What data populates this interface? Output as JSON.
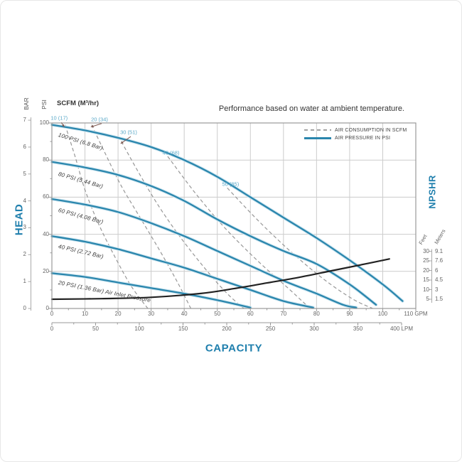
{
  "colors": {
    "curve_blue": "#2a86ad",
    "curve_blue_halo": "#cfe6f0",
    "label_blue": "#1f7fad",
    "scfm_label_blue": "#5aa8c8",
    "dashed_gray": "#979797",
    "npshr_black": "#222222",
    "grid": "#cccccc",
    "frame": "#999999",
    "tick_text": "#666666",
    "arrow": "#7f5a52"
  },
  "chart_data": {
    "type": "line",
    "title": "Performance based on water at ambient temperature.",
    "scfm_header": "SCFM (M³/hr)",
    "legend": [
      {
        "label": "AIR CONSUMPTION IN SCFM",
        "style": "dashed"
      },
      {
        "label": "AIR PRESSURE IN PSI",
        "style": "solid"
      }
    ],
    "x_axis": {
      "label": "CAPACITY",
      "gpm": {
        "min": 0,
        "max": 110,
        "tick_step": 10,
        "unit": "GPM"
      },
      "lpm": {
        "min": 0,
        "max": 400,
        "tick_step": 50,
        "unit": "LPM"
      }
    },
    "y_axis_left": {
      "label": "HEAD",
      "psi": {
        "min": 0,
        "max": 100,
        "tick_step": 20,
        "unit": "PSI"
      },
      "bar": {
        "min": 0,
        "max": 7,
        "tick_step": 1,
        "unit": "BAR"
      }
    },
    "y_axis_right": {
      "label": "NPSHR",
      "feet_unit": "Feet",
      "meters_unit": "Meters",
      "feet_ticks": [
        30,
        25,
        20,
        15,
        10,
        5
      ],
      "meters_ticks": [
        9.1,
        7.6,
        6,
        4.5,
        3,
        1.5
      ]
    },
    "air_pressure_curves": [
      {
        "label": "100 PSI (6.8 Bar)",
        "points_gpm_psi": [
          [
            0,
            99
          ],
          [
            10,
            96
          ],
          [
            20,
            92
          ],
          [
            30,
            87
          ],
          [
            40,
            80
          ],
          [
            50,
            71
          ],
          [
            60,
            60
          ],
          [
            70,
            49
          ],
          [
            80,
            38
          ],
          [
            90,
            26
          ],
          [
            100,
            13
          ],
          [
            106,
            4
          ]
        ],
        "label_pos_gpm_psi": [
          2,
          95
        ],
        "label_angle_deg": 17
      },
      {
        "label": "80 PSI (5.44 Bar)",
        "points_gpm_psi": [
          [
            0,
            79
          ],
          [
            10,
            76
          ],
          [
            20,
            72
          ],
          [
            30,
            66
          ],
          [
            40,
            58
          ],
          [
            50,
            48
          ],
          [
            60,
            39
          ],
          [
            70,
            31
          ],
          [
            80,
            24
          ],
          [
            90,
            13
          ],
          [
            98,
            2
          ]
        ],
        "label_pos_gpm_psi": [
          2,
          74
        ],
        "label_angle_deg": 16
      },
      {
        "label": "60 PSI (4.08 Bar)",
        "points_gpm_psi": [
          [
            0,
            59
          ],
          [
            10,
            56
          ],
          [
            20,
            52
          ],
          [
            30,
            46
          ],
          [
            40,
            39
          ],
          [
            50,
            31
          ],
          [
            60,
            23
          ],
          [
            70,
            15
          ],
          [
            80,
            8
          ],
          [
            88,
            2
          ],
          [
            92,
            0.5
          ]
        ],
        "label_pos_gpm_psi": [
          2,
          54.5
        ],
        "label_angle_deg": 15
      },
      {
        "label": "40 PSI (2.72 Bar)",
        "points_gpm_psi": [
          [
            0,
            39
          ],
          [
            10,
            36
          ],
          [
            20,
            32
          ],
          [
            30,
            27
          ],
          [
            40,
            22
          ],
          [
            50,
            16
          ],
          [
            60,
            10
          ],
          [
            70,
            4
          ],
          [
            79,
            0.5
          ]
        ],
        "label_pos_gpm_psi": [
          2,
          35
        ],
        "label_angle_deg": 13
      },
      {
        "label": "20 PSI (1.36 Bar) Air Inlet Pressure",
        "points_gpm_psi": [
          [
            0,
            19
          ],
          [
            10,
            17
          ],
          [
            20,
            14
          ],
          [
            30,
            11
          ],
          [
            40,
            8
          ],
          [
            50,
            4.5
          ],
          [
            60,
            0.5
          ]
        ],
        "label_pos_gpm_psi": [
          2,
          15.5
        ],
        "label_angle_deg": 11
      }
    ],
    "air_consumption_curves": [
      {
        "label": "10 (17)",
        "points_gpm_psi": [
          [
            4,
            99
          ],
          [
            7,
            82
          ],
          [
            10,
            64
          ],
          [
            14,
            46
          ],
          [
            19,
            28
          ],
          [
            24,
            12
          ],
          [
            29,
            0
          ]
        ],
        "label_pos_gpm_psi": [
          2.2,
          102.5
        ],
        "arrow": true
      },
      {
        "label": "20 (34)",
        "points_gpm_psi": [
          [
            12,
            99
          ],
          [
            16,
            84
          ],
          [
            21,
            66
          ],
          [
            27,
            48
          ],
          [
            33,
            30
          ],
          [
            38,
            14
          ],
          [
            42,
            0
          ]
        ],
        "label_pos_gpm_psi": [
          14.4,
          102
        ],
        "arrow": true
      },
      {
        "label": "30 (51)",
        "points_gpm_psi": [
          [
            21,
            90
          ],
          [
            26,
            74
          ],
          [
            32,
            56
          ],
          [
            39,
            38
          ],
          [
            47,
            20
          ],
          [
            53,
            8
          ],
          [
            58,
            0
          ]
        ],
        "label_pos_gpm_psi": [
          23.2,
          95
        ],
        "arrow": true
      },
      {
        "label": "40 (68)",
        "points_gpm_psi": [
          [
            35,
            82
          ],
          [
            43,
            63
          ],
          [
            52,
            44
          ],
          [
            62,
            26
          ],
          [
            72,
            10
          ],
          [
            78,
            0
          ]
        ],
        "label_pos_gpm_psi": [
          36,
          84
        ],
        "arrow": false
      },
      {
        "label": "50 (85)",
        "points_gpm_psi": [
          [
            53,
            65
          ],
          [
            62,
            48
          ],
          [
            72,
            31
          ],
          [
            82,
            16
          ],
          [
            91,
            5
          ],
          [
            97,
            0
          ]
        ],
        "label_pos_gpm_psi": [
          54,
          67
        ],
        "arrow": false
      }
    ],
    "npshr_curve": {
      "points_gpm_feet": [
        [
          0,
          5
        ],
        [
          15,
          5.3
        ],
        [
          30,
          6
        ],
        [
          45,
          8
        ],
        [
          55,
          10.5
        ],
        [
          65,
          13.5
        ],
        [
          75,
          16.5
        ],
        [
          85,
          20
        ],
        [
          95,
          23.5
        ],
        [
          102,
          26
        ]
      ]
    }
  }
}
